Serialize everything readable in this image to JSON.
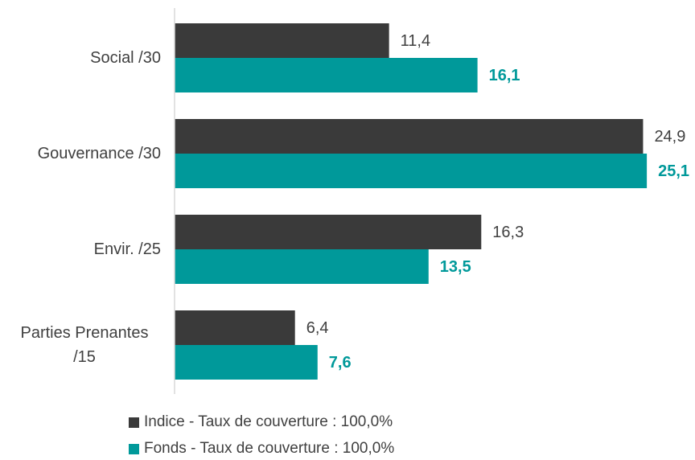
{
  "chart_data": {
    "type": "hbar",
    "categories": [
      "Social /30",
      "Gouvernance /30",
      "Envir. /25",
      "Parties Prenantes /15"
    ],
    "series": [
      {
        "name": "Indice - Taux de couverture : 100,0%",
        "color": "#3a3a3a",
        "values": [
          11.4,
          24.9,
          16.3,
          6.4
        ],
        "value_labels": [
          "11,4",
          "24,9",
          "16,3",
          "6,4"
        ]
      },
      {
        "name": "Fonds - Taux de couverture : 100,0%",
        "color": "#00999a",
        "values": [
          16.1,
          25.1,
          13.5,
          7.6
        ],
        "value_labels": [
          "16,1",
          "25,1",
          "13,5",
          "7,6"
        ]
      }
    ],
    "xlim": [
      0,
      27.66
    ]
  }
}
